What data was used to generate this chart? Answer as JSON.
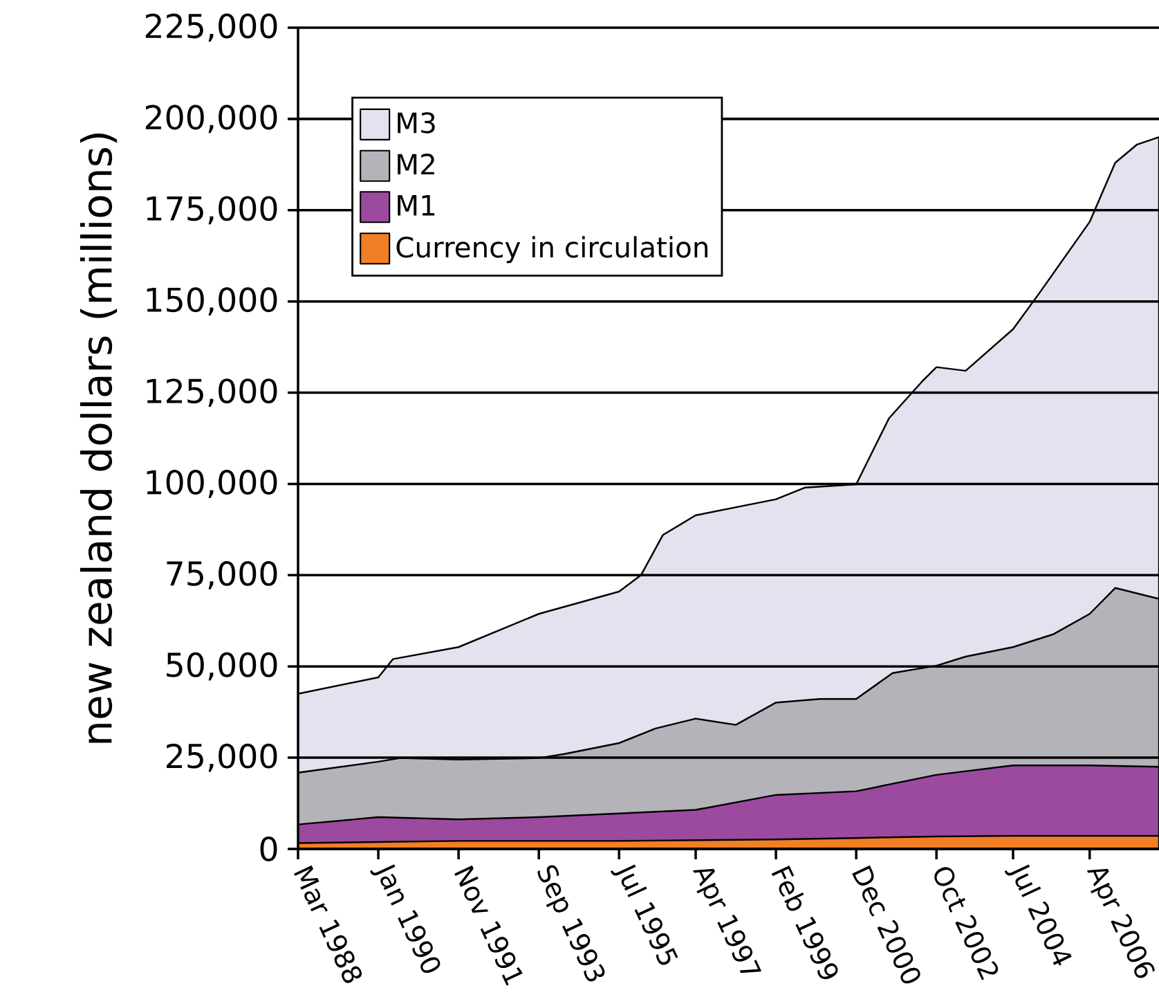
{
  "chart_data": {
    "type": "area",
    "ylabel": "new zealand dollars (millions)",
    "xlim": [
      "1988-03",
      "2007-11"
    ],
    "xticks": [
      {
        "value": "1988-03",
        "label": "Mar 1988"
      },
      {
        "value": "1990-01",
        "label": "Jan 1990"
      },
      {
        "value": "1991-11",
        "label": "Nov 1991"
      },
      {
        "value": "1993-09",
        "label": "Sep 1993"
      },
      {
        "value": "1995-07",
        "label": "Jul 1995"
      },
      {
        "value": "1997-04",
        "label": "Apr 1997"
      },
      {
        "value": "1999-02",
        "label": "Feb 1999"
      },
      {
        "value": "2000-12",
        "label": "Dec 2000"
      },
      {
        "value": "2002-10",
        "label": "Oct 2002"
      },
      {
        "value": "2004-07",
        "label": "Jul 2004"
      },
      {
        "value": "2006-04",
        "label": "Apr 2006"
      }
    ],
    "ylim": [
      0,
      225000
    ],
    "yticks": [
      0,
      {
        "value": 25000,
        "label": "25,000"
      },
      {
        "value": 50000,
        "label": "50,000"
      },
      {
        "value": 75000,
        "label": "75,000"
      },
      {
        "value": 100000,
        "label": "100,000"
      },
      {
        "value": 125000,
        "label": "125,000"
      },
      {
        "value": 150000,
        "label": "150,000"
      },
      {
        "value": 175000,
        "label": "175,000"
      },
      {
        "value": 200000,
        "label": "200,000"
      },
      {
        "value": 225000,
        "label": "225,000"
      }
    ],
    "grid": "y",
    "legend": "top left",
    "series": [
      {
        "name": "M3",
        "color": "#e6e1ee",
        "x": [
          "1988-03",
          "1990-01",
          "1990-05",
          "1991-11",
          "1993-09",
          "1995-07",
          "1996-01",
          "1996-07",
          "1997-04",
          "1999-02",
          "1999-10",
          "2000-12",
          "2001-09",
          "2002-06",
          "2002-10",
          "2003-06",
          "2004-07",
          "2005-02",
          "2006-04",
          "2006-11",
          "2007-05",
          "2007-11"
        ],
        "values": [
          42500,
          47000,
          52000,
          55300,
          64400,
          70500,
          75000,
          86000,
          91400,
          95800,
          99000,
          99900,
          118000,
          128000,
          132000,
          131000,
          142400,
          152000,
          171800,
          188000,
          193000,
          195000
        ]
      },
      {
        "name": "M2",
        "color": "#b4b3ba",
        "x": [
          "1988-03",
          "1990-01",
          "1990-07",
          "1991-11",
          "1993-09",
          "1994-04",
          "1995-07",
          "1996-05",
          "1997-04",
          "1998-03",
          "1999-02",
          "2000-02",
          "2000-12",
          "2001-10",
          "2002-10",
          "2003-06",
          "2004-07",
          "2005-06",
          "2006-04",
          "2006-11",
          "2007-11"
        ],
        "values": [
          20900,
          23900,
          24900,
          24500,
          24900,
          26000,
          29000,
          33000,
          35700,
          34000,
          40100,
          41100,
          41100,
          48200,
          50200,
          52700,
          55300,
          58800,
          64400,
          71500,
          68500
        ]
      },
      {
        "name": "M1",
        "color": "#9b4a9f",
        "x": [
          "1988-03",
          "1990-01",
          "1991-11",
          "1993-09",
          "1995-07",
          "1997-04",
          "1999-02",
          "2000-12",
          "2002-10",
          "2004-07",
          "2006-04",
          "2007-11"
        ],
        "values": [
          6700,
          8700,
          8100,
          8700,
          9700,
          10700,
          14800,
          15800,
          20300,
          22900,
          22900,
          22500
        ]
      },
      {
        "name": "Currency in circulation",
        "color": "#f07f25",
        "x": [
          "1988-03",
          "1991-11",
          "1995-07",
          "1999-02",
          "2000-12",
          "2002-10",
          "2004-07",
          "2006-04",
          "2007-11"
        ],
        "values": [
          1600,
          2200,
          2200,
          2600,
          3000,
          3400,
          3600,
          3600,
          3600
        ]
      }
    ]
  }
}
